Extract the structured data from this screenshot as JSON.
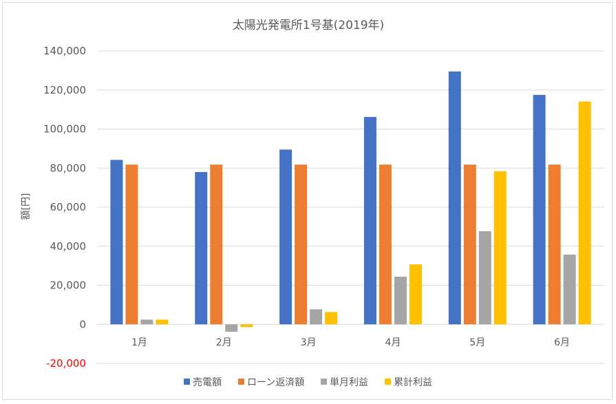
{
  "chart_data": {
    "type": "bar",
    "title": "太陽光発電所1号基(2019年)",
    "xlabel": "",
    "ylabel": "額[円]",
    "ylim": [
      -20000,
      140000
    ],
    "ytick_step": 20000,
    "ytick_labels": [
      "-20,000",
      "0",
      "20,000",
      "40,000",
      "60,000",
      "80,000",
      "100,000",
      "120,000",
      "140,000"
    ],
    "categories": [
      "1月",
      "2月",
      "3月",
      "4月",
      "5月",
      "6月"
    ],
    "series": [
      {
        "name": "売電額",
        "color": "#4472c4",
        "values": [
          84200,
          78000,
          89500,
          106200,
          129500,
          117500
        ]
      },
      {
        "name": "ローン返済額",
        "color": "#ed7d31",
        "values": [
          81800,
          81800,
          81800,
          81800,
          81800,
          81800
        ]
      },
      {
        "name": "単月利益",
        "color": "#a5a5a5",
        "values": [
          2400,
          -3800,
          7700,
          24400,
          47700,
          35700
        ]
      },
      {
        "name": "累計利益",
        "color": "#ffc000",
        "values": [
          2400,
          -1400,
          6300,
          30700,
          78400,
          114100
        ]
      }
    ],
    "grid": true,
    "legend_position": "bottom"
  }
}
